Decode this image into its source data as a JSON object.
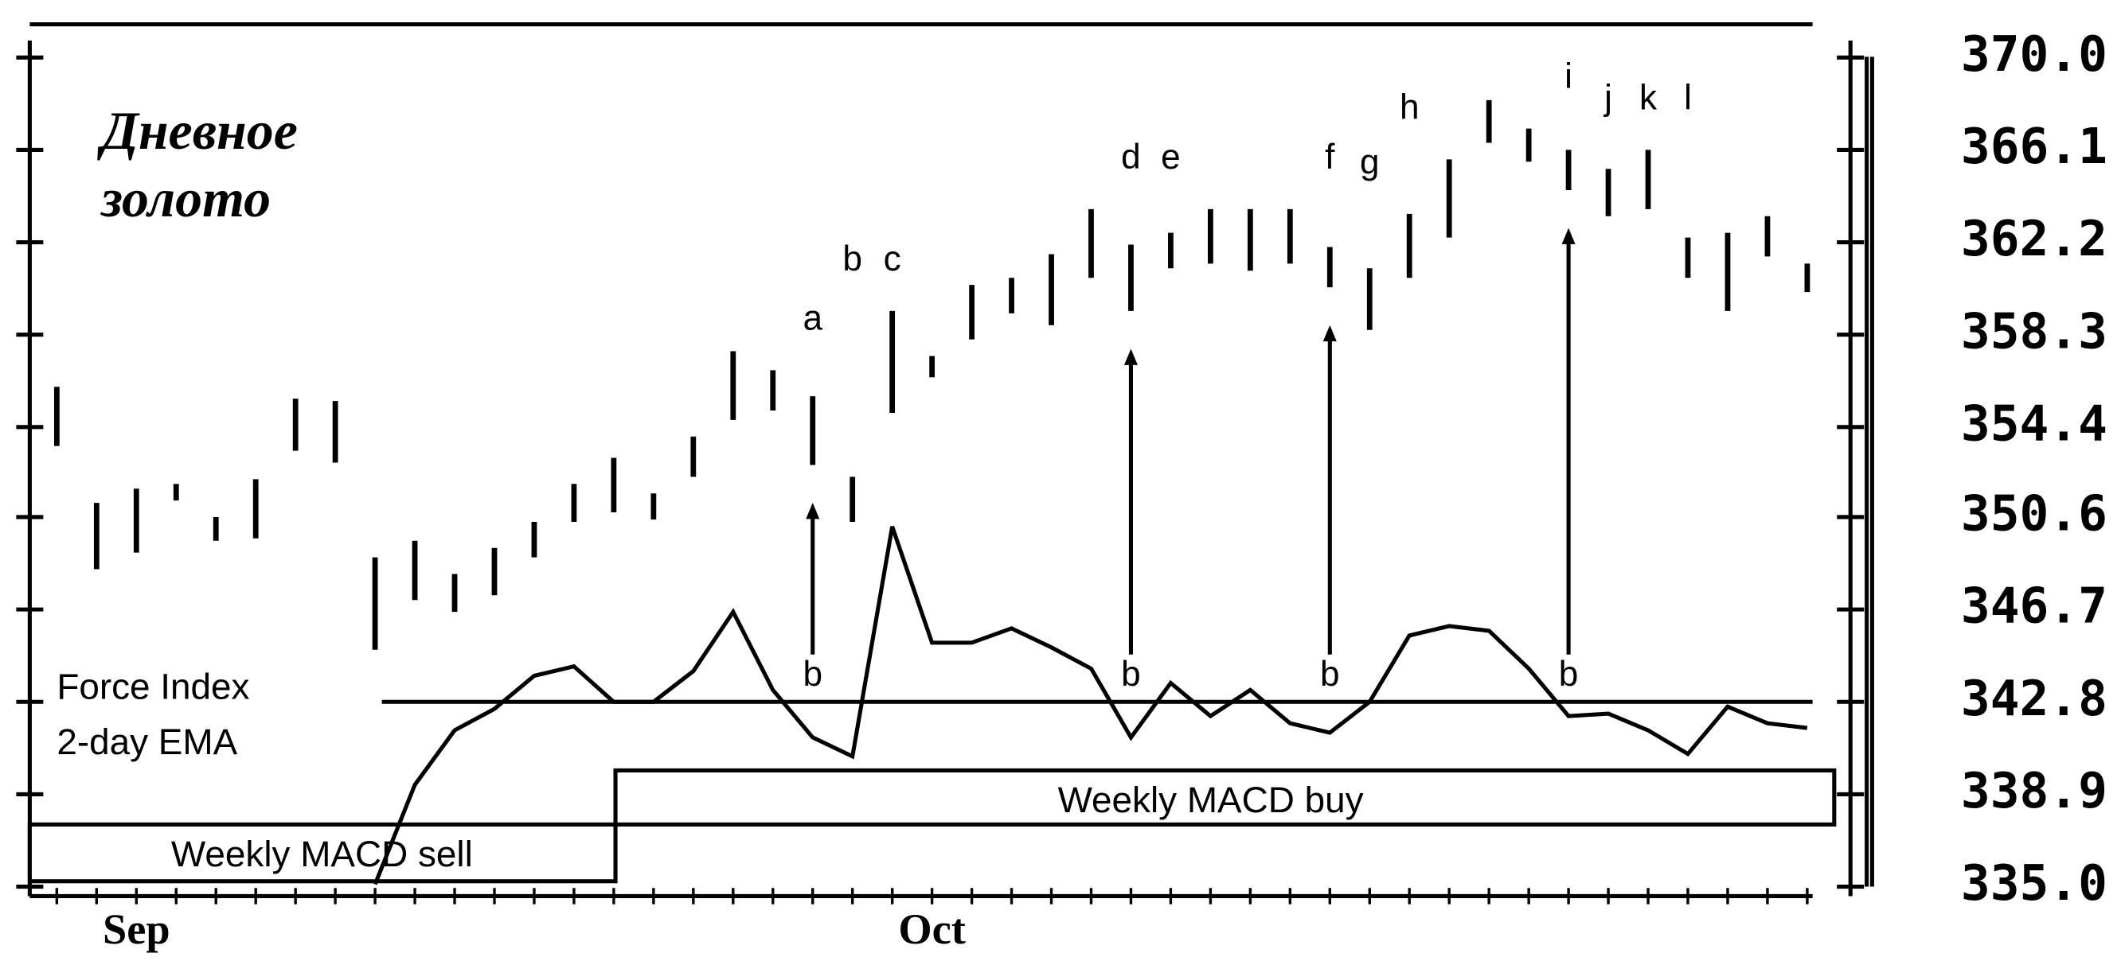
{
  "chart_data": {
    "type": "ohlc",
    "title": [
      "Дневное",
      "золото"
    ],
    "categories": [
      null,
      null,
      "Sep",
      null,
      null,
      null,
      null,
      null,
      null,
      null,
      null,
      null,
      null,
      null,
      null,
      null,
      null,
      null,
      null,
      null,
      null,
      null,
      "Oct",
      null,
      null,
      null,
      null,
      null,
      null,
      null,
      null,
      null,
      null,
      null,
      null,
      null,
      null,
      null,
      null,
      null,
      null,
      null,
      null,
      null,
      null
    ],
    "high": [
      356.1,
      351.2,
      351.8,
      352.0,
      350.6,
      352.2,
      355.6,
      355.5,
      348.9,
      349.6,
      348.2,
      349.3,
      350.4,
      352.0,
      353.1,
      351.6,
      354.0,
      357.6,
      356.8,
      355.7,
      352.3,
      359.3,
      357.4,
      360.4,
      360.7,
      361.7,
      363.6,
      362.1,
      362.6,
      363.6,
      363.6,
      363.6,
      362.0,
      361.1,
      363.4,
      365.7,
      368.2,
      367.0,
      366.1,
      365.3,
      366.1,
      362.4,
      362.6,
      363.3,
      361.3
    ],
    "low": [
      353.6,
      348.4,
      349.1,
      351.3,
      349.6,
      349.7,
      353.4,
      352.9,
      345.0,
      347.1,
      346.6,
      347.3,
      348.9,
      350.4,
      350.8,
      350.5,
      352.3,
      354.7,
      355.1,
      352.8,
      350.4,
      355.0,
      356.5,
      358.1,
      359.2,
      358.7,
      360.7,
      359.3,
      361.1,
      361.3,
      361.0,
      361.3,
      360.3,
      358.5,
      360.7,
      362.4,
      366.4,
      365.6,
      364.4,
      363.3,
      363.6,
      360.7,
      359.3,
      361.6,
      360.1
    ],
    "bar_labels": [
      null,
      null,
      null,
      null,
      null,
      null,
      null,
      null,
      null,
      null,
      null,
      null,
      null,
      null,
      null,
      null,
      null,
      null,
      null,
      "a",
      "b",
      "c",
      null,
      null,
      null,
      null,
      null,
      "d",
      "e",
      null,
      null,
      null,
      "f",
      "g",
      "h",
      null,
      null,
      null,
      "i",
      "j",
      "k",
      "l",
      null,
      null,
      null
    ],
    "signals": [
      null,
      null,
      null,
      null,
      null,
      null,
      null,
      null,
      null,
      null,
      null,
      null,
      null,
      null,
      null,
      null,
      null,
      null,
      null,
      "b",
      null,
      null,
      null,
      null,
      null,
      null,
      null,
      "b",
      null,
      null,
      null,
      null,
      "b",
      null,
      null,
      null,
      null,
      null,
      "b",
      null,
      null,
      null,
      null,
      null,
      null
    ],
    "force_index": {
      "label": [
        "Force Index",
        "2-day EMA"
      ],
      "zero": 342.8,
      "values": [
        null,
        null,
        null,
        null,
        null,
        null,
        null,
        null,
        335.1,
        339.3,
        341.6,
        342.5,
        343.9,
        344.3,
        342.8,
        342.8,
        344.1,
        346.6,
        343.3,
        341.3,
        340.5,
        350.2,
        345.3,
        345.3,
        345.9,
        345.1,
        344.2,
        341.3,
        343.6,
        342.2,
        343.3,
        341.9,
        341.5,
        342.8,
        345.6,
        346.0,
        345.8,
        344.2,
        342.2,
        342.3,
        341.6,
        340.6,
        342.6,
        341.9,
        341.7
      ]
    },
    "macd_sell": "Weekly MACD sell",
    "macd_buy": "Weekly MACD buy",
    "ylim": [
      334.6,
      371.4
    ],
    "yticks": [
      {
        "value": 335.0,
        "label": "335.0"
      },
      338.9,
      342.8,
      346.7,
      350.6,
      354.4,
      358.3,
      362.2,
      366.1,
      {
        "value": 370.0,
        "label": "370.0"
      }
    ]
  }
}
